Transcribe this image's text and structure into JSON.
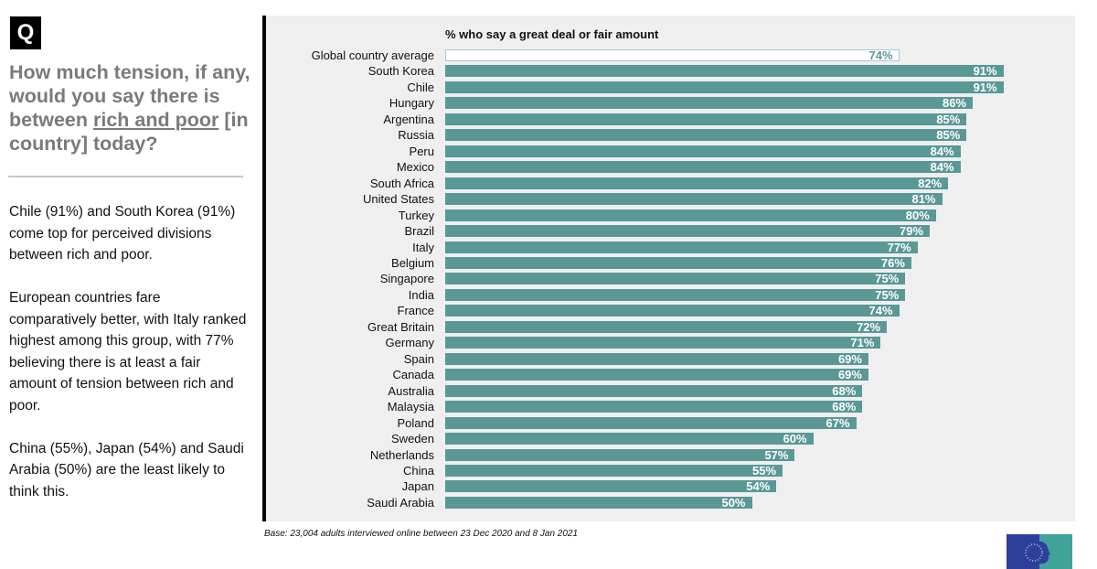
{
  "question": {
    "badge": "Q",
    "before": "How much tension, if any, would you say there is between ",
    "underlined": "rich and poor",
    "after": " [in country] today?"
  },
  "notes": [
    "Chile (91%) and South Korea (91%) come top for perceived divisions between rich and poor.",
    "European countries fare comparatively better, with Italy ranked highest among this group, with 77% believing there is at least a fair amount of tension between rich and poor.",
    "China (55%), Japan (54%) and Saudi Arabia (50%) are the least likely to think this."
  ],
  "base_note": "Base: 23,004 adults interviewed online between 23 Dec 2020 and 8 Jan 2021",
  "colors": {
    "bar": "#5a9896",
    "average_bar": "#ffffff"
  },
  "chart_data": {
    "type": "bar",
    "orientation": "horizontal",
    "title": "% who say a great deal or fair amount",
    "categories": [
      "Global country average",
      "South Korea",
      "Chile",
      "Hungary",
      "Argentina",
      "Russia",
      "Peru",
      "Mexico",
      "South Africa",
      "United States",
      "Turkey",
      "Brazil",
      "Italy",
      "Belgium",
      "Singapore",
      "India",
      "France",
      "Great Britain",
      "Germany",
      "Spain",
      "Canada",
      "Australia",
      "Malaysia",
      "Poland",
      "Sweden",
      "Netherlands",
      "China",
      "Japan",
      "Saudi Arabia"
    ],
    "values": [
      74,
      91,
      91,
      86,
      85,
      85,
      84,
      84,
      82,
      81,
      80,
      79,
      77,
      76,
      75,
      75,
      74,
      72,
      71,
      69,
      69,
      68,
      68,
      67,
      60,
      57,
      55,
      54,
      50
    ],
    "value_labels": [
      "74%",
      "91%",
      "91%",
      "86%",
      "85%",
      "85%",
      "84%",
      "84%",
      "82%",
      "81%",
      "80%",
      "79%",
      "77%",
      "76%",
      "75%",
      "75%",
      "74%",
      "72%",
      "71%",
      "69%",
      "69%",
      "68%",
      "68%",
      "67%",
      "60%",
      "57%",
      "55%",
      "54%",
      "50%"
    ],
    "xlim": [
      0,
      100
    ],
    "grid": false
  }
}
